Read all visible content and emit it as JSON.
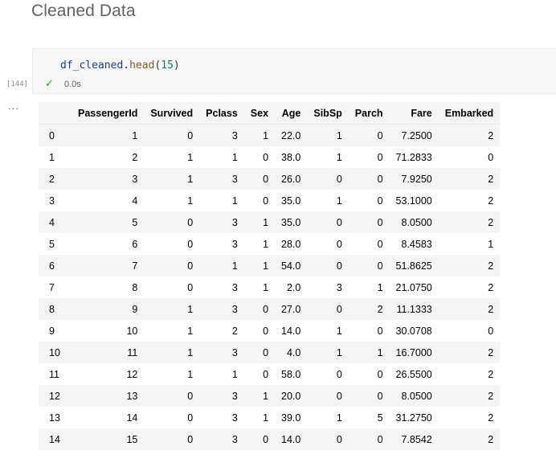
{
  "heading": "Cleaned Data",
  "cell": {
    "code": {
      "object": "df_cleaned",
      "dot": ".",
      "method": "head",
      "open_paren": "(",
      "arg": "15",
      "close_paren": ")"
    },
    "execution_count": "[144]",
    "status_icon": "checkmark-icon",
    "status_glyph": "✓",
    "duration": "0.0s",
    "output_menu": "..."
  },
  "table": {
    "columns": [
      "",
      "PassengerId",
      "Survived",
      "Pclass",
      "Sex",
      "Age",
      "SibSp",
      "Parch",
      "Fare",
      "Embarked"
    ],
    "rows": [
      [
        "0",
        "1",
        "0",
        "3",
        "1",
        "22.0",
        "1",
        "0",
        "7.2500",
        "2"
      ],
      [
        "1",
        "2",
        "1",
        "1",
        "0",
        "38.0",
        "1",
        "0",
        "71.2833",
        "0"
      ],
      [
        "2",
        "3",
        "1",
        "3",
        "0",
        "26.0",
        "0",
        "0",
        "7.9250",
        "2"
      ],
      [
        "3",
        "4",
        "1",
        "1",
        "0",
        "35.0",
        "1",
        "0",
        "53.1000",
        "2"
      ],
      [
        "4",
        "5",
        "0",
        "3",
        "1",
        "35.0",
        "0",
        "0",
        "8.0500",
        "2"
      ],
      [
        "5",
        "6",
        "0",
        "3",
        "1",
        "28.0",
        "0",
        "0",
        "8.4583",
        "1"
      ],
      [
        "6",
        "7",
        "0",
        "1",
        "1",
        "54.0",
        "0",
        "0",
        "51.8625",
        "2"
      ],
      [
        "7",
        "8",
        "0",
        "3",
        "1",
        "2.0",
        "3",
        "1",
        "21.0750",
        "2"
      ],
      [
        "8",
        "9",
        "1",
        "3",
        "0",
        "27.0",
        "0",
        "2",
        "11.1333",
        "2"
      ],
      [
        "9",
        "10",
        "1",
        "2",
        "0",
        "14.0",
        "1",
        "0",
        "30.0708",
        "0"
      ],
      [
        "10",
        "11",
        "1",
        "3",
        "0",
        "4.0",
        "1",
        "1",
        "16.7000",
        "2"
      ],
      [
        "11",
        "12",
        "1",
        "1",
        "0",
        "58.0",
        "0",
        "0",
        "26.5500",
        "2"
      ],
      [
        "12",
        "13",
        "0",
        "3",
        "1",
        "20.0",
        "0",
        "0",
        "8.0500",
        "2"
      ],
      [
        "13",
        "14",
        "0",
        "3",
        "1",
        "39.0",
        "1",
        "5",
        "31.2750",
        "2"
      ],
      [
        "14",
        "15",
        "0",
        "3",
        "0",
        "14.0",
        "0",
        "0",
        "7.8542",
        "2"
      ]
    ]
  }
}
